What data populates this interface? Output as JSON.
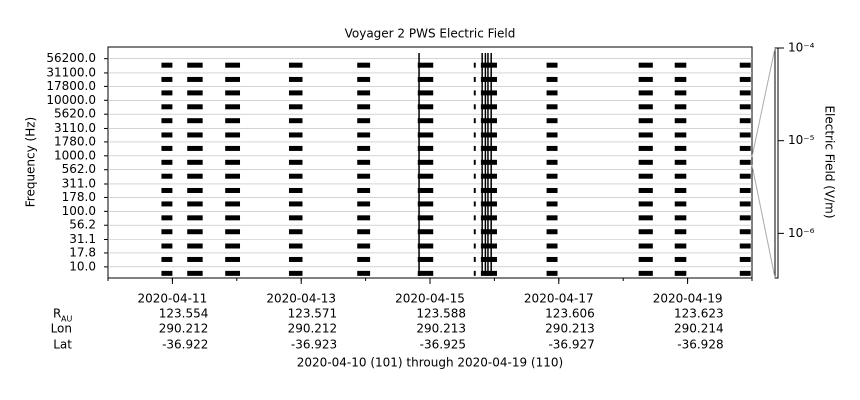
{
  "chart_data": {
    "type": "spectrogram",
    "title": "Voyager 2 PWS Electric Field",
    "ylabel": "Frequency (Hz)",
    "colorbar_label": "Electric Field (V/m)",
    "footer": "2020-04-10 (101) through 2020-04-19 (110)",
    "ylog": true,
    "ylim": [
      6.3,
      91200
    ],
    "yticks": [
      {
        "value": 56200,
        "label": "56200.0"
      },
      {
        "value": 31100,
        "label": "31100.0"
      },
      {
        "value": 17800,
        "label": "17800.0"
      },
      {
        "value": 10000,
        "label": "10000.0"
      },
      {
        "value": 5620,
        "label": "5620.0"
      },
      {
        "value": 3110,
        "label": "3110.0"
      },
      {
        "value": 1780,
        "label": "1780.0"
      },
      {
        "value": 1000,
        "label": "1000.0"
      },
      {
        "value": 562,
        "label": "562.0"
      },
      {
        "value": 311,
        "label": "311.0"
      },
      {
        "value": 178,
        "label": "178.0"
      },
      {
        "value": 100,
        "label": "100.0"
      },
      {
        "value": 56.2,
        "label": "56.2"
      },
      {
        "value": 31.1,
        "label": "31.1"
      },
      {
        "value": 17.8,
        "label": "17.8"
      },
      {
        "value": 10,
        "label": "10.0"
      }
    ],
    "xlim": [
      101,
      111
    ],
    "xticks": [
      {
        "value": 102,
        "label": "2020-04-11"
      },
      {
        "value": 104,
        "label": "2020-04-13"
      },
      {
        "value": 106,
        "label": "2020-04-15"
      },
      {
        "value": 108,
        "label": "2020-04-17"
      },
      {
        "value": 110,
        "label": "2020-04-19"
      }
    ],
    "color": "#000000",
    "segments": [
      [
        101.83,
        102.0
      ],
      [
        102.23,
        102.47
      ],
      [
        102.82,
        103.05
      ],
      [
        103.81,
        104.02
      ],
      [
        104.87,
        105.07
      ],
      [
        105.81,
        106.05
      ],
      [
        106.68,
        106.71
      ],
      [
        106.79,
        107.04
      ],
      [
        107.81,
        107.98
      ],
      [
        109.24,
        109.46
      ],
      [
        109.8,
        109.98
      ],
      [
        110.81,
        110.98
      ]
    ],
    "spikes": [
      105.83,
      106.81,
      106.86,
      106.9,
      106.95
    ],
    "clog": true,
    "clim": [
      3.3e-07,
      0.0001
    ],
    "cticks": [
      {
        "value": 0.0001,
        "label": "10⁻⁴"
      },
      {
        "value": 1e-05,
        "label": "10⁻⁵"
      },
      {
        "value": 1e-06,
        "label": "10⁻⁶"
      }
    ],
    "ephemeris": {
      "r_label": "R",
      "r_sub": "AU",
      "lon_label": "Lon",
      "lat_label": "Lat",
      "r": [
        123.554,
        123.571,
        123.588,
        123.606,
        123.623
      ],
      "lon": [
        290.212,
        290.212,
        290.213,
        290.213,
        290.214
      ],
      "lat": [
        -36.922,
        -36.923,
        -36.925,
        -36.927,
        -36.928
      ]
    }
  }
}
